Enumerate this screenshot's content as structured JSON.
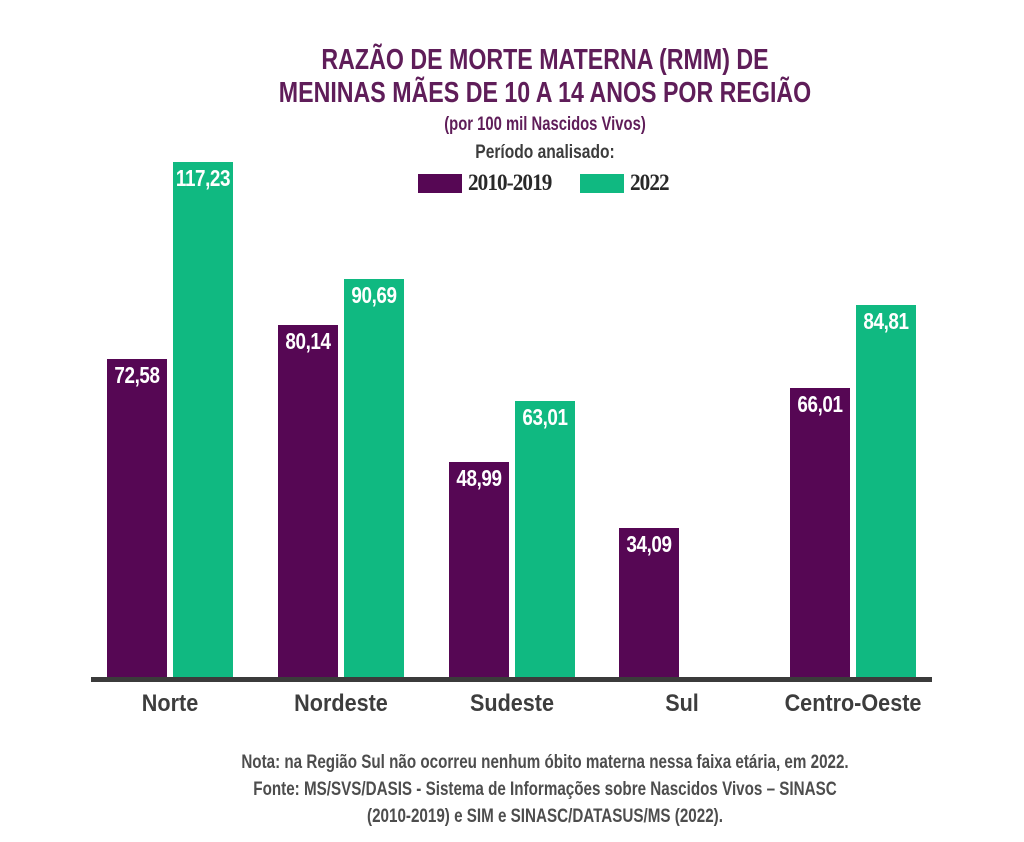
{
  "title": {
    "line1": "RAZÃO DE MORTE MATERNA (RMM) DE",
    "line2": "MENINAS MÃES DE 10 A 14 ANOS POR REGIÃO",
    "subtitle": "(por 100 mil Nascidos Vivos)"
  },
  "legend": {
    "heading": "Período analisado:",
    "items": [
      {
        "label": "2010-2019",
        "color": "#560754"
      },
      {
        "label": "2022",
        "color": "#10B981"
      }
    ]
  },
  "chart_data": {
    "type": "bar",
    "title": "RAZÃO DE MORTE MATERNA (RMM) DE MENINAS MÃES DE 10 A 14 ANOS POR REGIÃO (por 100 mil Nascidos Vivos)",
    "categories": [
      "Norte",
      "Nordeste",
      "Sudeste",
      "Sul",
      "Centro-Oeste"
    ],
    "series": [
      {
        "name": "2010-2019",
        "color": "#560754",
        "values": [
          72.58,
          80.14,
          48.99,
          34.09,
          66.01
        ]
      },
      {
        "name": "2022",
        "color": "#10B981",
        "values": [
          117.23,
          90.69,
          63.01,
          null,
          84.81
        ]
      }
    ],
    "value_labels": [
      [
        "72,58",
        "80,14",
        "48,99",
        "34,09",
        "66,01"
      ],
      [
        "117,23",
        "90,69",
        "63,01",
        null,
        "84,81"
      ]
    ],
    "xlabel": "",
    "ylabel": "",
    "ylim": [
      0,
      120
    ],
    "grid": false,
    "legend_position": "top-center",
    "value_label_position": "inside-top",
    "decimal_separator": ","
  },
  "footer": {
    "note": "Nota: na Região Sul não ocorreu nenhum óbito materna nessa faixa etária, em 2022.",
    "source_line1": "Fonte: MS/SVS/DASIS - Sistema de Informações sobre Nascidos Vivos – SINASC",
    "source_line2": "(2010-2019) e SIM e SINASC/DATASUS/MS (2022)."
  },
  "colors": {
    "title_text": "#5F1D59",
    "series_2010_2019": "#560754",
    "series_2022": "#10B981",
    "axis_line": "#3B3B3B",
    "category_label_text": "#3D3D3D",
    "footer_text": "#4D4D4D",
    "background": "#FFFFFF"
  }
}
